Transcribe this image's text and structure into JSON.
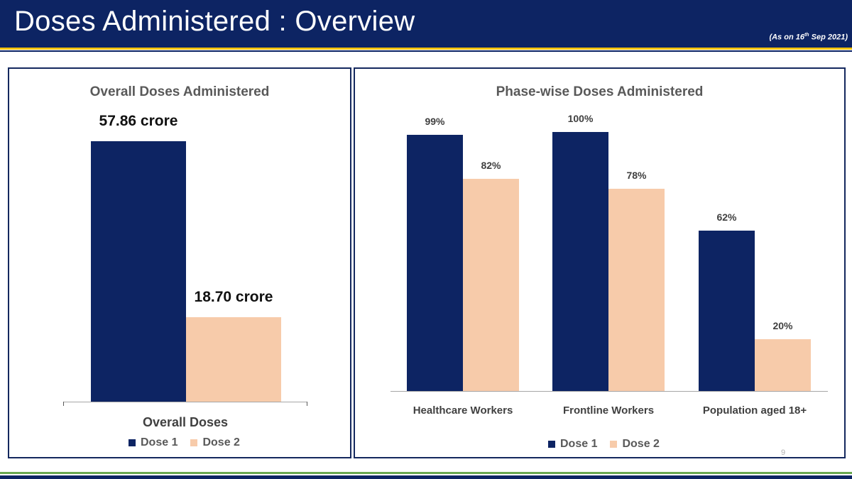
{
  "header": {
    "title": "Doses Administered : Overview",
    "date_prefix": "(As on 16",
    "date_sup": "th",
    "date_suffix": " Sep 2021)"
  },
  "page_number": "9",
  "colors": {
    "header": "#0d2463",
    "dose1": "#0d2463",
    "dose2": "#f7cbaa",
    "stripe_gold": "#f4c20d",
    "stripe_green": "#6aa84f"
  },
  "chart_data": [
    {
      "type": "bar",
      "title": "Overall Doses Administered",
      "categories": [
        "Overall Doses"
      ],
      "series": [
        {
          "name": "Dose 1",
          "values": [
            57.86
          ],
          "labels": [
            "57.86 crore"
          ]
        },
        {
          "name": "Dose 2",
          "values": [
            18.7
          ],
          "labels": [
            "18.70 crore"
          ]
        }
      ],
      "unit": "crore",
      "legend": "bottom",
      "grid": false
    },
    {
      "type": "bar",
      "title": "Phase-wise Doses Administered",
      "categories": [
        "Healthcare Workers",
        "Frontline Workers",
        "Population aged 18+"
      ],
      "series": [
        {
          "name": "Dose 1",
          "values": [
            99,
            100,
            62
          ],
          "labels": [
            "99%",
            "100%",
            "62%"
          ]
        },
        {
          "name": "Dose 2",
          "values": [
            82,
            78,
            20
          ],
          "labels": [
            "82%",
            "78%",
            "20%"
          ]
        }
      ],
      "unit": "%",
      "ylim": [
        0,
        100
      ],
      "legend": "bottom",
      "grid": false
    }
  ]
}
